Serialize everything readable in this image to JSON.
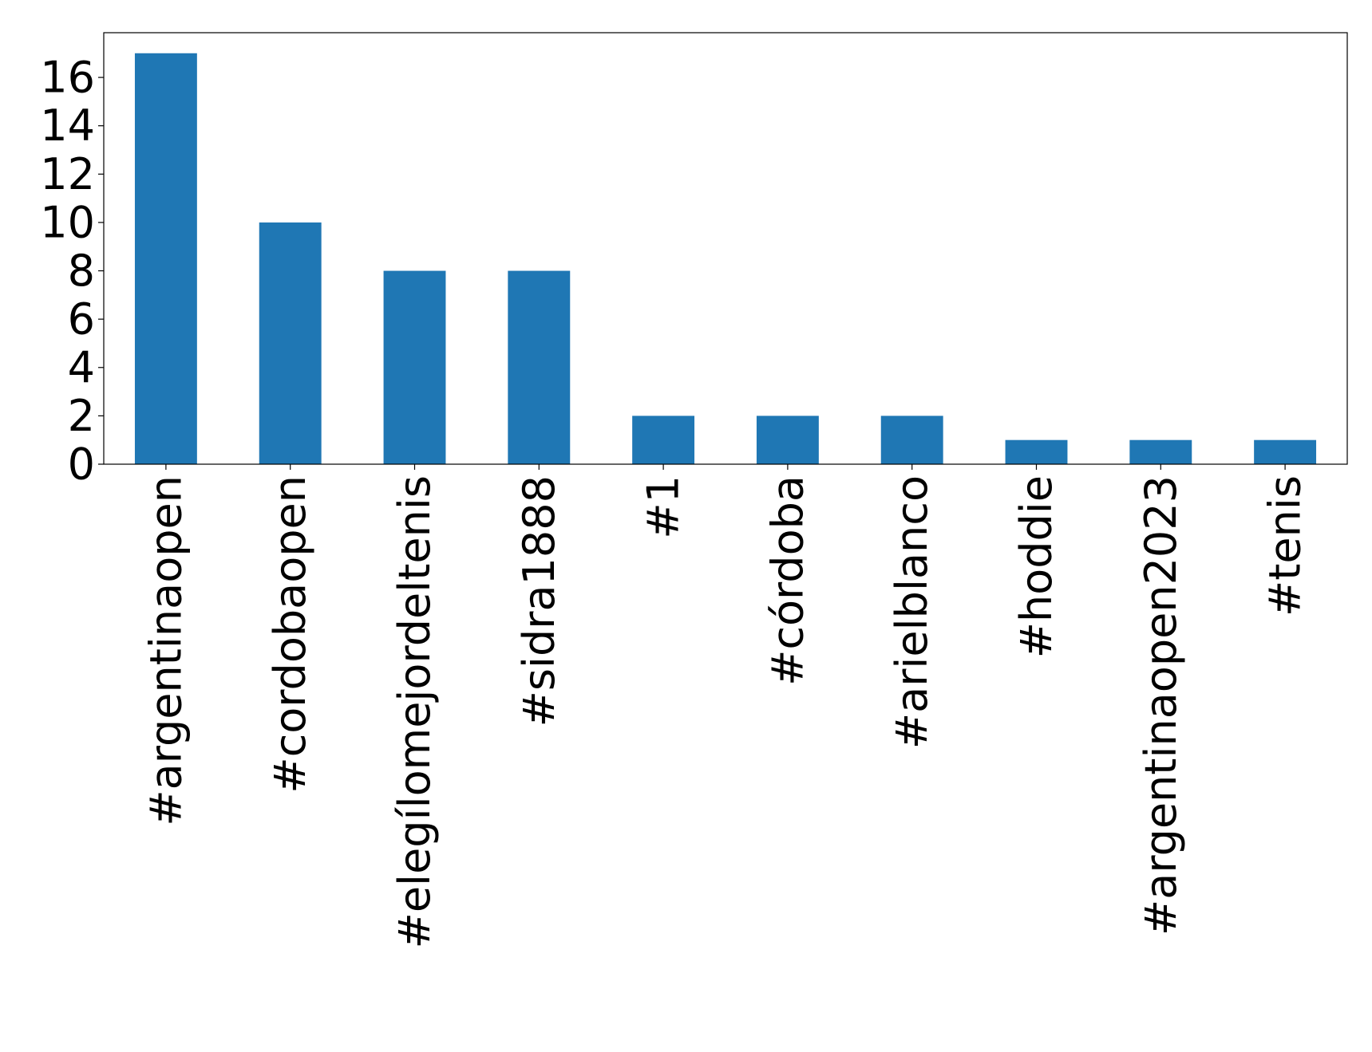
{
  "chart_data": {
    "type": "bar",
    "title": "",
    "xlabel": "",
    "ylabel": "",
    "categories": [
      "#argentinaopen",
      "#cordobaopen",
      "#elegílomejordeltenis",
      "#sidra1888",
      "#1",
      "#córdoba",
      "#arielblanco",
      "#hoddie",
      "#argentinaopen2023",
      "#tenis"
    ],
    "values": [
      17,
      10,
      8,
      8,
      2,
      2,
      2,
      1,
      1,
      1
    ],
    "ylim": [
      0,
      17.85
    ],
    "yticks": [
      0,
      2,
      4,
      6,
      8,
      10,
      12,
      14,
      16
    ],
    "grid": false,
    "legend": "none",
    "bar_color": "#1f77b4"
  }
}
